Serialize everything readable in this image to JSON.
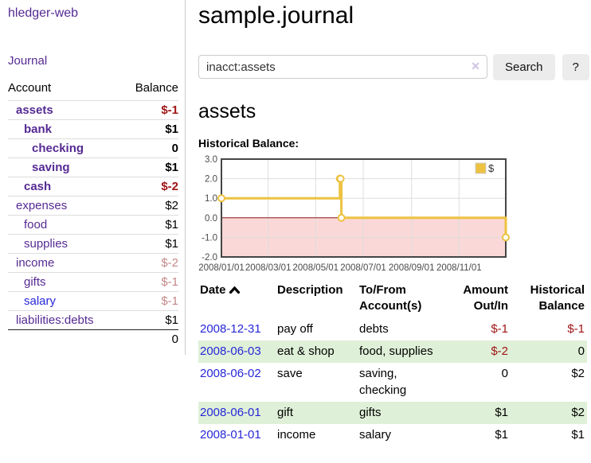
{
  "colors": {
    "link_purple": "#552a93",
    "link_blue": "#2727d9",
    "negative_strong": "#a01515",
    "negative_faded": "#c48888",
    "row_stripe_green": "#dff0d8",
    "button_gray": "#ececec"
  },
  "sidebar": {
    "app_title": "hledger-web",
    "nav": {
      "journal_label": "Journal"
    },
    "table": {
      "headers": {
        "account": "Account",
        "balance": "Balance"
      },
      "rows": [
        {
          "name": "assets",
          "level": 1,
          "strong": true,
          "name_class": "",
          "balance": "$-1",
          "balance_class": "neg"
        },
        {
          "name": "bank",
          "level": 2,
          "strong": true,
          "name_class": "",
          "balance": "$1",
          "balance_class": ""
        },
        {
          "name": "checking",
          "level": 3,
          "strong": true,
          "name_class": "",
          "balance": "0",
          "balance_class": ""
        },
        {
          "name": "saving",
          "level": 3,
          "strong": true,
          "name_class": "",
          "balance": "$1",
          "balance_class": ""
        },
        {
          "name": "cash",
          "level": 2,
          "strong": true,
          "name_class": "",
          "balance": "$-2",
          "balance_class": "neg"
        },
        {
          "name": "expenses",
          "level": 1,
          "strong": false,
          "name_class": "",
          "balance": "$2",
          "balance_class": ""
        },
        {
          "name": "food",
          "level": 2,
          "strong": false,
          "name_class": "",
          "balance": "$1",
          "balance_class": ""
        },
        {
          "name": "supplies",
          "level": 2,
          "strong": false,
          "name_class": "",
          "balance": "$1",
          "balance_class": ""
        },
        {
          "name": "income",
          "level": 1,
          "strong": false,
          "name_class": "",
          "balance": "$-2",
          "balance_class": "neg-faded"
        },
        {
          "name": "gifts",
          "level": 2,
          "strong": false,
          "name_class": "",
          "balance": "$-1",
          "balance_class": "neg-faded"
        },
        {
          "name": "salary",
          "level": 2,
          "strong": false,
          "name_class": "blue",
          "balance": "$-1",
          "balance_class": "neg-faded"
        },
        {
          "name": "liabilities:debts",
          "level": 1,
          "strong": false,
          "name_class": "",
          "balance": "$1",
          "balance_class": ""
        }
      ],
      "total": "0"
    }
  },
  "main": {
    "title": "sample.journal",
    "search": {
      "value": "inacct:assets",
      "clear_icon": "✕",
      "button_label": "Search",
      "help_label": "?"
    },
    "account_heading": "assets",
    "chart_heading": "Historical Balance:"
  },
  "chart_data": {
    "type": "line",
    "title": "Historical Balance",
    "step": "after",
    "legend": [
      {
        "label": "$",
        "color": "#edc240"
      }
    ],
    "legend_position": "top-right",
    "grid": true,
    "x_range": [
      "2008-01-01",
      "2008-12-31"
    ],
    "ylim": [
      -2.0,
      3.0
    ],
    "yticks": [
      {
        "label": "3.0",
        "value": 3.0
      },
      {
        "label": "2.0",
        "value": 2.0
      },
      {
        "label": "1.0",
        "value": 1.0
      },
      {
        "label": "0.0",
        "value": 0.0
      },
      {
        "label": "-1.0",
        "value": -1.0
      },
      {
        "label": "-2.0",
        "value": -2.0
      }
    ],
    "xticks": [
      {
        "date": "2008-01-01",
        "label": "2008/01/01"
      },
      {
        "date": "2008-03-01",
        "label": "2008/03/01"
      },
      {
        "date": "2008-05-01",
        "label": "2008/05/01"
      },
      {
        "date": "2008-07-01",
        "label": "2008/07/01"
      },
      {
        "date": "2008-09-01",
        "label": "2008/09/01"
      },
      {
        "date": "2008-11-01",
        "label": "2008/11/01"
      }
    ],
    "points": [
      {
        "date": "2008-01-01",
        "value": 1
      },
      {
        "date": "2008-06-01",
        "value": 2
      },
      {
        "date": "2008-06-02",
        "value": 2
      },
      {
        "date": "2008-06-03",
        "value": 0
      },
      {
        "date": "2008-12-31",
        "value": -1
      }
    ],
    "colors": {
      "series": "#edc240",
      "marker_fill": "#ffffff",
      "grid": "#dddddd",
      "border": "#454545",
      "zero_line": "#8b1a1a",
      "negative_region": "#fbd8d8"
    }
  },
  "register": {
    "headers": {
      "date": "Date",
      "description": "Description",
      "accounts": "To/From Account(s)",
      "amount": "Amount Out/In",
      "balance": "Historical Balance"
    },
    "rows": [
      {
        "date": "2008-12-31",
        "description": "pay off",
        "accounts": "debts",
        "amount": "$-1",
        "amount_negative": true,
        "balance": "$-1",
        "balance_negative": true
      },
      {
        "date": "2008-06-03",
        "description": "eat & shop",
        "accounts": "food, supplies",
        "amount": "$-2",
        "amount_negative": true,
        "balance": "0",
        "balance_negative": false
      },
      {
        "date": "2008-06-02",
        "description": "save",
        "accounts": "saving, checking",
        "amount": "0",
        "amount_negative": false,
        "balance": "$2",
        "balance_negative": false
      },
      {
        "date": "2008-06-01",
        "description": "gift",
        "accounts": "gifts",
        "amount": "$1",
        "amount_negative": false,
        "balance": "$2",
        "balance_negative": false
      },
      {
        "date": "2008-01-01",
        "description": "income",
        "accounts": "salary",
        "amount": "$1",
        "amount_negative": false,
        "balance": "$1",
        "balance_negative": false
      }
    ]
  }
}
